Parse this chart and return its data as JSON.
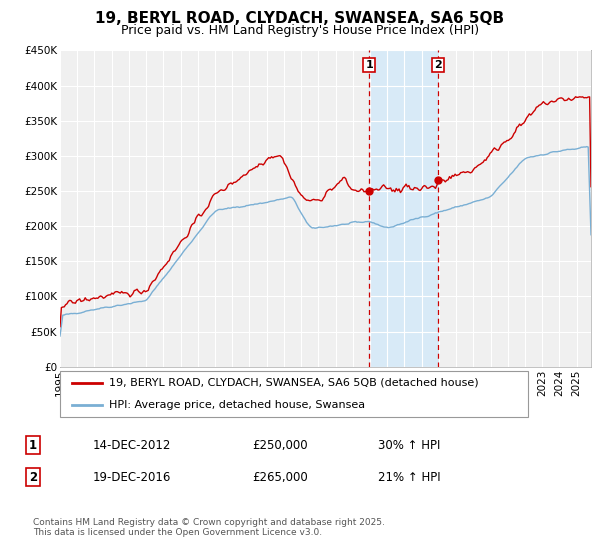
{
  "title": "19, BERYL ROAD, CLYDACH, SWANSEA, SA6 5QB",
  "subtitle": "Price paid vs. HM Land Registry's House Price Index (HPI)",
  "ylim": [
    0,
    450000
  ],
  "xlim_start": 1995.0,
  "xlim_end": 2025.83,
  "yticks": [
    0,
    50000,
    100000,
    150000,
    200000,
    250000,
    300000,
    350000,
    400000,
    450000
  ],
  "ytick_labels": [
    "£0",
    "£50K",
    "£100K",
    "£150K",
    "£200K",
    "£250K",
    "£300K",
    "£350K",
    "£400K",
    "£450K"
  ],
  "xticks": [
    1995,
    1996,
    1997,
    1998,
    1999,
    2000,
    2001,
    2002,
    2003,
    2004,
    2005,
    2006,
    2007,
    2008,
    2009,
    2010,
    2011,
    2012,
    2013,
    2014,
    2015,
    2016,
    2017,
    2018,
    2019,
    2020,
    2021,
    2022,
    2023,
    2024,
    2025
  ],
  "marker1_x": 2012.958,
  "marker1_y": 250000,
  "marker1_label": "1",
  "marker1_date": "14-DEC-2012",
  "marker1_price": "£250,000",
  "marker1_hpi": "30% ↑ HPI",
  "marker2_x": 2016.958,
  "marker2_y": 265000,
  "marker2_label": "2",
  "marker2_date": "19-DEC-2016",
  "marker2_price": "£265,000",
  "marker2_hpi": "21% ↑ HPI",
  "shaded_region_start": 2012.958,
  "shaded_region_end": 2016.958,
  "line1_color": "#cc0000",
  "line2_color": "#7aafd4",
  "shade_color": "#d8eaf7",
  "dashed_line_color": "#cc0000",
  "plot_bg_color": "#f0f0f0",
  "grid_color": "#ffffff",
  "legend1_label": "19, BERYL ROAD, CLYDACH, SWANSEA, SA6 5QB (detached house)",
  "legend2_label": "HPI: Average price, detached house, Swansea",
  "footer": "Contains HM Land Registry data © Crown copyright and database right 2025.\nThis data is licensed under the Open Government Licence v3.0.",
  "title_fontsize": 11,
  "subtitle_fontsize": 9,
  "tick_fontsize": 7.5,
  "legend_fontsize": 8,
  "table_fontsize": 8.5
}
